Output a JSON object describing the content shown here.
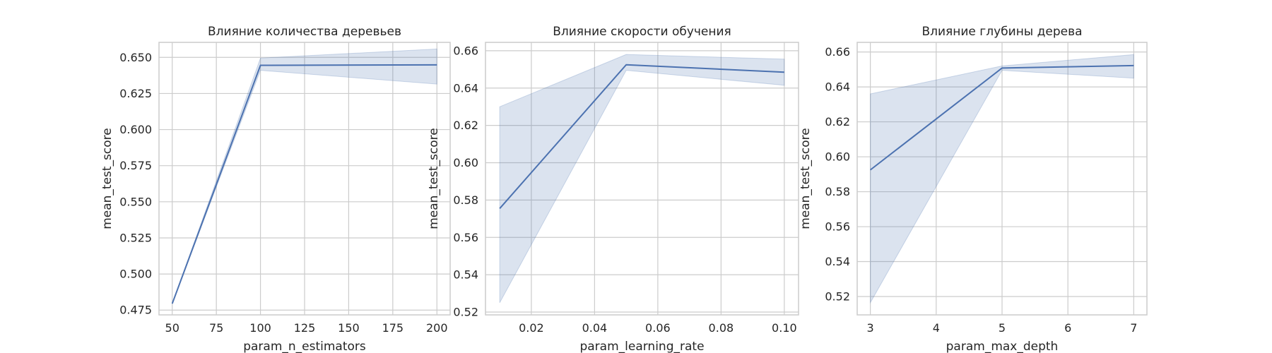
{
  "colors": {
    "line": "#4c72b0",
    "band": "#4c72b0",
    "grid": "#cccccc",
    "spine": "#cccccc",
    "background": "#ffffff"
  },
  "chart_data": [
    {
      "type": "line",
      "title": "Влияние количества деревьев",
      "xlabel": "param_n_estimators",
      "ylabel": "mean_test_score",
      "xlim": [
        42.5,
        207.5
      ],
      "ylim": [
        0.4717,
        0.6604
      ],
      "xticks": [
        50,
        75,
        100,
        125,
        150,
        175,
        200
      ],
      "xtick_labels": [
        "50",
        "75",
        "100",
        "125",
        "150",
        "175",
        "200"
      ],
      "yticks": [
        0.475,
        0.5,
        0.525,
        0.55,
        0.575,
        0.6,
        0.625,
        0.65
      ],
      "ytick_labels": [
        "0.475",
        "0.500",
        "0.525",
        "0.550",
        "0.575",
        "0.600",
        "0.625",
        "0.650"
      ],
      "grid": true,
      "series": [
        {
          "x": [
            50,
            100,
            200
          ],
          "y": [
            0.4795,
            0.6445,
            0.6448
          ],
          "lower": [
            0.4795,
            0.641,
            0.6315
          ],
          "upper": [
            0.4795,
            0.6495,
            0.6558
          ]
        }
      ]
    },
    {
      "type": "line",
      "title": "Влияние скорости обучения",
      "xlabel": "param_learning_rate",
      "ylabel": "mean_test_score",
      "xlim": [
        0.0055,
        0.1045
      ],
      "ylim": [
        0.5185,
        0.6645
      ],
      "xticks": [
        0.02,
        0.04,
        0.06,
        0.08,
        0.1
      ],
      "xtick_labels": [
        "0.02",
        "0.04",
        "0.06",
        "0.08",
        "0.10"
      ],
      "yticks": [
        0.52,
        0.54,
        0.56,
        0.58,
        0.6,
        0.62,
        0.64,
        0.66
      ],
      "ytick_labels": [
        "0.52",
        "0.54",
        "0.56",
        "0.58",
        "0.60",
        "0.62",
        "0.64",
        "0.66"
      ],
      "grid": true,
      "series": [
        {
          "x": [
            0.01,
            0.05,
            0.1
          ],
          "y": [
            0.5755,
            0.6525,
            0.6485
          ],
          "lower": [
            0.525,
            0.6495,
            0.6415
          ],
          "upper": [
            0.63,
            0.658,
            0.6555
          ]
        }
      ]
    },
    {
      "type": "line",
      "title": "Влияние глубины дерева",
      "xlabel": "param_max_depth",
      "ylabel": "mean_test_score",
      "xlim": [
        2.8,
        7.2
      ],
      "ylim": [
        0.5095,
        0.6655
      ],
      "xticks": [
        3,
        4,
        5,
        6,
        7
      ],
      "xtick_labels": [
        "3",
        "4",
        "5",
        "6",
        "7"
      ],
      "yticks": [
        0.52,
        0.54,
        0.56,
        0.58,
        0.6,
        0.62,
        0.64,
        0.66
      ],
      "ytick_labels": [
        "0.52",
        "0.54",
        "0.56",
        "0.58",
        "0.60",
        "0.62",
        "0.64",
        "0.66"
      ],
      "grid": true,
      "series": [
        {
          "x": [
            3,
            5,
            7
          ],
          "y": [
            0.5925,
            0.6508,
            0.6522
          ],
          "lower": [
            0.5165,
            0.6495,
            0.645
          ],
          "upper": [
            0.636,
            0.652,
            0.6585
          ]
        }
      ]
    }
  ]
}
